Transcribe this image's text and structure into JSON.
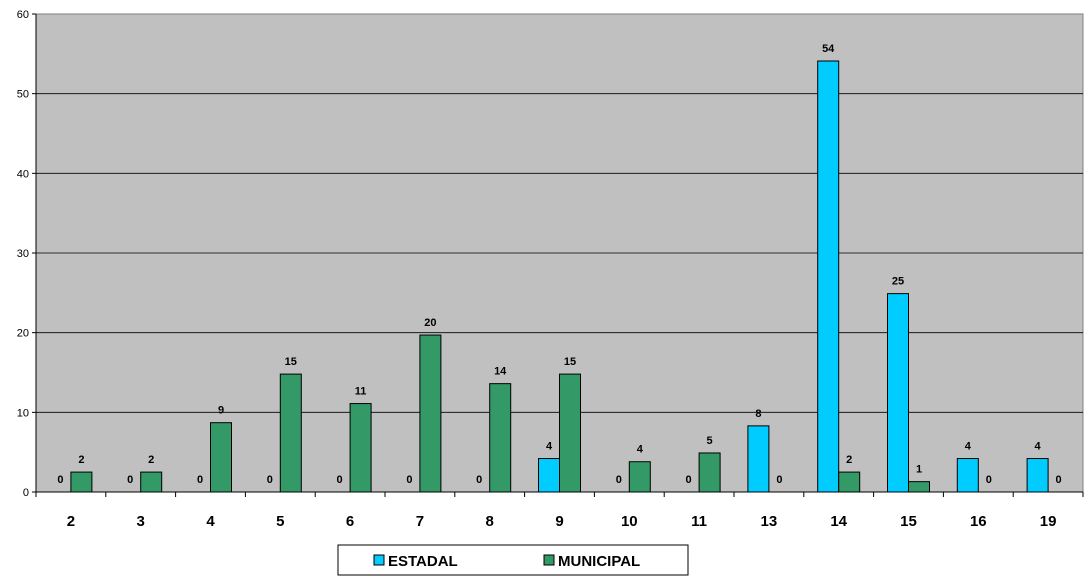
{
  "chart_data": {
    "type": "bar",
    "categories": [
      "2",
      "3",
      "4",
      "5",
      "6",
      "7",
      "8",
      "9",
      "10",
      "11",
      "13",
      "14",
      "15",
      "16",
      "19"
    ],
    "series": [
      {
        "name": "ESTADAL",
        "color": "#00CCFF",
        "values": [
          null,
          null,
          null,
          null,
          null,
          null,
          null,
          4,
          null,
          null,
          8,
          54,
          25,
          4,
          4
        ],
        "labels": [
          "0",
          "0",
          "0",
          "0",
          "0",
          "0",
          "0",
          "4",
          "0",
          "0",
          "8",
          "54",
          "25",
          "4",
          "4"
        ]
      },
      {
        "name": "MUNICIPAL",
        "color": "#339966",
        "values": [
          2,
          2,
          9,
          15,
          11,
          20,
          14,
          15,
          4,
          5,
          null,
          2,
          1,
          null,
          null
        ],
        "labels": [
          "2",
          "2",
          "9",
          "15",
          "11",
          "20",
          "14",
          "15",
          "4",
          "5",
          "0",
          "2",
          "1",
          "0",
          "0"
        ]
      }
    ],
    "bar_heights": {
      "ESTADAL": [
        0,
        0,
        0,
        0,
        0,
        0,
        0,
        4.2,
        0,
        0,
        8.3,
        54.1,
        24.9,
        4.2,
        4.2
      ],
      "MUNICIPAL": [
        2.5,
        2.5,
        8.7,
        14.8,
        11.1,
        19.7,
        13.6,
        14.8,
        3.8,
        4.9,
        0,
        2.5,
        1.3,
        0,
        0
      ]
    },
    "yticks": [
      "0",
      "10",
      "20",
      "30",
      "40",
      "50",
      "60"
    ],
    "ylim": [
      0,
      60
    ],
    "grid": true,
    "plot_background": "#C0C0C0",
    "legend_position": "bottom"
  }
}
